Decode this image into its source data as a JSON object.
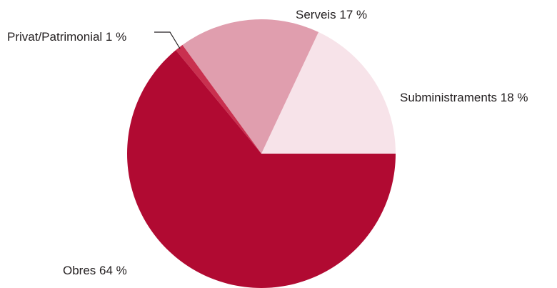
{
  "chart_data": {
    "type": "pie",
    "title": "",
    "grid": false,
    "legend": "none",
    "start_angle_deg": 0,
    "direction": "counterclockwise",
    "slices": [
      {
        "label": "Subministraments 18 %",
        "value": 18,
        "color": "#f7e3e9"
      },
      {
        "label": "Serveis 17 %",
        "value": 17,
        "color": "#e09eae"
      },
      {
        "label": "Privat/Patrimonial 1 %",
        "value": 1,
        "color": "#c9304f"
      },
      {
        "label": "Obres 64 %",
        "value": 64,
        "color": "#b10a32"
      }
    ]
  }
}
